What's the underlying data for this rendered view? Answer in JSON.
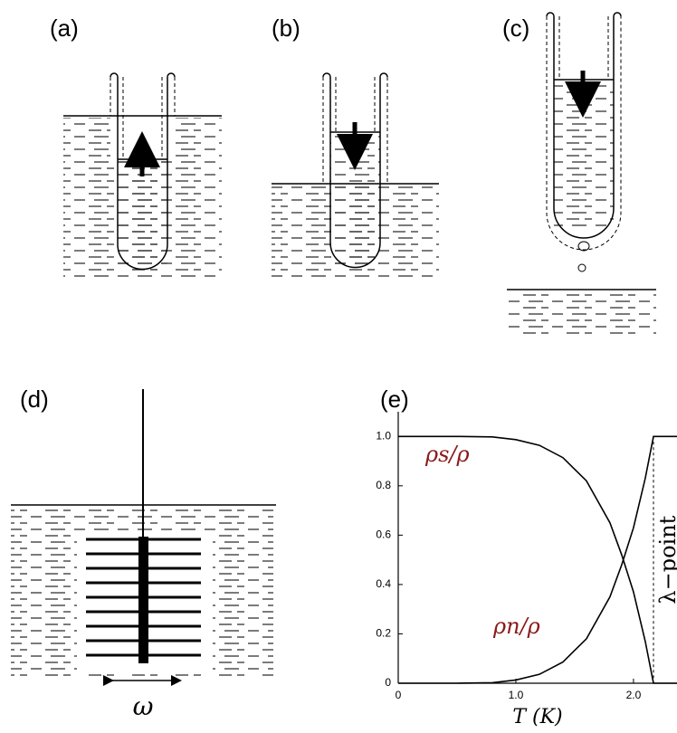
{
  "panels": [
    "(a)",
    "(b)",
    "(c)",
    "(d)"
  ],
  "omega": "ω",
  "chart_data": {
    "type": "line",
    "label": "(e)",
    "x_label": "T (K)",
    "x": [
      0,
      0.5,
      0.8,
      1.0,
      1.2,
      1.4,
      1.6,
      1.8,
      1.9,
      2.0,
      2.1,
      2.17,
      2.37
    ],
    "series": [
      {
        "name": "ρs/ρ",
        "color": "#000000",
        "values": [
          1,
          1,
          0.998,
          0.987,
          0.964,
          0.914,
          0.82,
          0.65,
          0.52,
          0.37,
          0.17,
          0,
          0
        ]
      },
      {
        "name": "ρn/ρ",
        "color": "#000000",
        "values": [
          0,
          0,
          0.002,
          0.013,
          0.036,
          0.086,
          0.18,
          0.35,
          0.48,
          0.63,
          0.83,
          1,
          1
        ]
      }
    ],
    "label_color": "#8b1a1a",
    "xlim": [
      0,
      2.37
    ],
    "ylim": [
      0,
      1.1
    ],
    "xticks": [
      0,
      {
        "value": 1,
        "label": "1.0"
      },
      {
        "value": 2,
        "label": "2.0"
      }
    ],
    "yticks": [
      0,
      0.2,
      0.4,
      0.6,
      0.8,
      {
        "value": 1,
        "label": "1.0"
      }
    ],
    "annotations": [
      {
        "text": "λ−point",
        "x": 2.17
      }
    ]
  }
}
